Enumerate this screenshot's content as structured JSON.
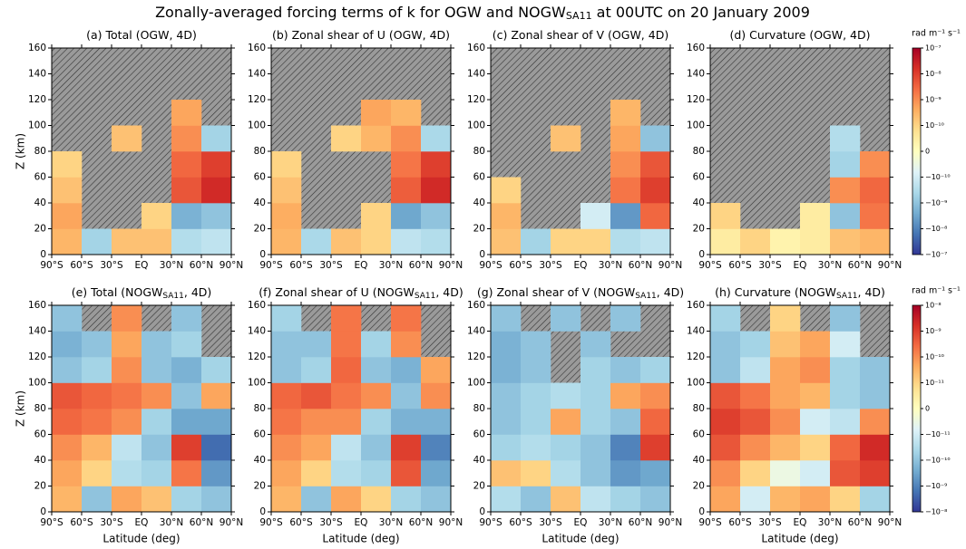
{
  "figure_title": "Zonally-averaged forcing terms of k for OGW and NOGW",
  "figure_title_sub": "SA11",
  "figure_title_end": " at 00UTC on 20 January 2009",
  "xlabel": "Latitude (deg)",
  "ylabel": "Z (km)",
  "axes": {
    "xlim": [
      -90,
      90
    ],
    "ylim": [
      0,
      160
    ],
    "xticks": [
      {
        "value": -90,
        "label": "90°S"
      },
      {
        "value": -60,
        "label": "60°S"
      },
      {
        "value": -30,
        "label": "30°S"
      },
      {
        "value": 0,
        "label": "EQ"
      },
      {
        "value": 30,
        "label": "30°N"
      },
      {
        "value": 60,
        "label": "60°N"
      },
      {
        "value": 90,
        "label": "90°N"
      }
    ],
    "yticks": [
      0,
      20,
      40,
      60,
      80,
      100,
      120,
      140,
      160
    ]
  },
  "colormap": [
    "#313695",
    "#4575b4",
    "#74add1",
    "#abd9e9",
    "#e0f3f8",
    "#ffffbf",
    "#fee090",
    "#fdae61",
    "#f46d43",
    "#d73027",
    "#a50026"
  ],
  "chart_data": [
    {
      "type": "heatmap",
      "title": "(a) Total (OGW, 4D)",
      "x": [
        -75,
        -45,
        -15,
        15,
        45,
        75
      ],
      "y": [
        10,
        30,
        50,
        70,
        90,
        110,
        130,
        150
      ],
      "values": [
        [
          3e-10,
          -5e-10,
          2e-10,
          2e-10,
          -3e-10,
          -2e-10
        ],
        [
          5e-10,
          null,
          null,
          1e-10,
          -2e-09,
          -1e-09
        ],
        [
          2e-10,
          null,
          null,
          null,
          5e-09,
          2e-08
        ],
        [
          1e-10,
          null,
          null,
          null,
          3e-09,
          1e-08
        ],
        [
          null,
          null,
          2e-10,
          null,
          1e-09,
          -5e-10
        ],
        [
          null,
          null,
          null,
          null,
          5e-10,
          null
        ],
        [
          null,
          null,
          null,
          null,
          null,
          null
        ],
        [
          null,
          null,
          null,
          null,
          null,
          null
        ]
      ]
    },
    {
      "type": "heatmap",
      "title": "(b) Zonal shear of U (OGW, 4D)",
      "x": [
        -75,
        -45,
        -15,
        15,
        45,
        75
      ],
      "y": [
        10,
        30,
        50,
        70,
        90,
        110,
        130,
        150
      ],
      "values": [
        [
          3e-10,
          -4e-10,
          2e-10,
          1e-10,
          -2e-10,
          -3e-10
        ],
        [
          4e-10,
          null,
          null,
          1e-10,
          -3e-09,
          -1e-09
        ],
        [
          2e-10,
          null,
          null,
          null,
          4e-09,
          2e-08
        ],
        [
          1e-10,
          null,
          null,
          null,
          2e-09,
          1e-08
        ],
        [
          null,
          null,
          1e-10,
          3e-10,
          1e-09,
          -4e-10
        ],
        [
          null,
          null,
          null,
          5e-10,
          3e-10,
          null
        ],
        [
          null,
          null,
          null,
          null,
          null,
          null
        ],
        [
          null,
          null,
          null,
          null,
          null,
          null
        ]
      ]
    },
    {
      "type": "heatmap",
      "title": "(c) Zonal shear of V (OGW, 4D)",
      "x": [
        -75,
        -45,
        -15,
        15,
        45,
        75
      ],
      "y": [
        10,
        30,
        50,
        70,
        90,
        110,
        130,
        150
      ],
      "values": [
        [
          2e-10,
          -5e-10,
          1e-10,
          1e-10,
          -3e-10,
          -2e-10
        ],
        [
          3e-10,
          null,
          null,
          -1e-10,
          -5e-09,
          3e-09
        ],
        [
          1e-10,
          null,
          null,
          null,
          2e-09,
          1e-08
        ],
        [
          null,
          null,
          null,
          null,
          1e-09,
          5e-09
        ],
        [
          null,
          null,
          2e-10,
          null,
          5e-10,
          -1e-09
        ],
        [
          null,
          null,
          null,
          null,
          3e-10,
          null
        ],
        [
          null,
          null,
          null,
          null,
          null,
          null
        ],
        [
          null,
          null,
          null,
          null,
          null,
          null
        ]
      ]
    },
    {
      "type": "heatmap",
      "title": "(d) Curvature (OGW, 4D)",
      "x": [
        -75,
        -45,
        -15,
        15,
        45,
        75
      ],
      "y": [
        10,
        30,
        50,
        70,
        90,
        110,
        130,
        150
      ],
      "values": [
        [
          5e-11,
          1e-10,
          3e-11,
          5e-11,
          2e-10,
          3e-10
        ],
        [
          1e-10,
          null,
          null,
          5e-11,
          -1e-09,
          2e-09
        ],
        [
          null,
          null,
          null,
          null,
          1e-09,
          3e-09
        ],
        [
          null,
          null,
          null,
          null,
          -5e-10,
          1e-09
        ],
        [
          null,
          null,
          null,
          null,
          -3e-10,
          null
        ],
        [
          null,
          null,
          null,
          null,
          null,
          null
        ],
        [
          null,
          null,
          null,
          null,
          null,
          null
        ],
        [
          null,
          null,
          null,
          null,
          null,
          null
        ]
      ],
      "colorbar": {
        "label": "rad m⁻¹ s⁻¹",
        "lim": [
          -1e-07,
          1e-07
        ],
        "ticks": [
          {
            "value": 1e-07,
            "label": "10⁻⁷"
          },
          {
            "value": 1e-08,
            "label": "10⁻⁸"
          },
          {
            "value": 1e-09,
            "label": "10⁻⁹"
          },
          {
            "value": 1e-10,
            "label": "10⁻¹⁰"
          },
          0,
          {
            "value": -1e-10,
            "label": "−10⁻¹⁰"
          },
          {
            "value": -1e-09,
            "label": "−10⁻⁹"
          },
          {
            "value": -1e-08,
            "label": "−10⁻⁸"
          },
          {
            "value": -1e-07,
            "label": "−10⁻⁷"
          }
        ]
      }
    },
    {
      "type": "heatmap",
      "title": "(e) Total (NOGW",
      "title_sub": "SA11",
      "title_end": ", 4D)",
      "x": [
        -75,
        -45,
        -15,
        15,
        45,
        75
      ],
      "y": [
        10,
        30,
        50,
        70,
        90,
        110,
        130,
        150
      ],
      "values": [
        [
          3e-11,
          -1e-10,
          5e-11,
          2e-11,
          -5e-11,
          -1e-10
        ],
        [
          5e-11,
          1e-11,
          -3e-11,
          -5e-11,
          2e-10,
          -5e-10
        ],
        [
          1e-10,
          3e-11,
          -2e-11,
          -1e-10,
          1e-09,
          -2e-09
        ],
        [
          3e-10,
          2e-10,
          1e-10,
          -5e-11,
          -3e-10,
          -3e-10
        ],
        [
          5e-10,
          3e-10,
          2e-10,
          1e-10,
          -1e-10,
          5e-11
        ],
        [
          -1e-10,
          -5e-11,
          1e-10,
          -1e-10,
          -2e-10,
          -5e-11
        ],
        [
          -2e-10,
          -1e-10,
          5e-11,
          -1e-10,
          -5e-11,
          null
        ],
        [
          -1e-10,
          null,
          1e-10,
          null,
          -1e-10,
          null
        ]
      ]
    },
    {
      "type": "heatmap",
      "title": "(f) Zonal shear of U (NOGW",
      "title_sub": "SA11",
      "title_end": ", 4D)",
      "x": [
        -75,
        -45,
        -15,
        15,
        45,
        75
      ],
      "y": [
        10,
        30,
        50,
        70,
        90,
        110,
        130,
        150
      ],
      "values": [
        [
          3e-11,
          -1e-10,
          5e-11,
          1e-11,
          -5e-11,
          -1e-10
        ],
        [
          5e-11,
          1e-11,
          -3e-11,
          -5e-11,
          5e-10,
          -3e-10
        ],
        [
          1e-10,
          5e-11,
          -2e-11,
          -1e-10,
          1e-09,
          -1e-09
        ],
        [
          2e-10,
          1e-10,
          1e-10,
          -5e-11,
          -2e-10,
          -2e-10
        ],
        [
          3e-10,
          5e-10,
          2e-10,
          1e-10,
          -1e-10,
          1e-10
        ],
        [
          -1e-10,
          -5e-11,
          3e-10,
          -1e-10,
          -2e-10,
          5e-11
        ],
        [
          -1e-10,
          -1e-10,
          2e-10,
          -5e-11,
          1e-10,
          null
        ],
        [
          -5e-11,
          null,
          2e-10,
          null,
          2e-10,
          null
        ]
      ]
    },
    {
      "type": "heatmap",
      "title": "(g) Zonal shear of V (NOGW",
      "title_sub": "SA11",
      "title_end": ", 4D)",
      "x": [
        -75,
        -45,
        -15,
        15,
        45,
        75
      ],
      "y": [
        10,
        30,
        50,
        70,
        90,
        110,
        130,
        150
      ],
      "values": [
        [
          -3e-11,
          -1e-10,
          2e-11,
          -2e-11,
          -5e-11,
          -1e-10
        ],
        [
          2e-11,
          1e-11,
          -3e-11,
          -1e-10,
          -5e-10,
          -3e-10
        ],
        [
          -5e-11,
          -3e-11,
          -5e-11,
          -1e-10,
          -1e-09,
          1e-09
        ],
        [
          -1e-10,
          -5e-11,
          5e-11,
          -5e-11,
          -1e-10,
          3e-10
        ],
        [
          -1e-10,
          -5e-11,
          -3e-11,
          -5e-11,
          5e-11,
          1e-10
        ],
        [
          -2e-10,
          -1e-10,
          null,
          -5e-11,
          -1e-10,
          -5e-11
        ],
        [
          -2e-10,
          -1e-10,
          null,
          -1e-10,
          null,
          null
        ],
        [
          -1e-10,
          null,
          -1e-10,
          null,
          -1e-10,
          null
        ]
      ]
    },
    {
      "type": "heatmap",
      "title": "(h) Curvature (NOGW",
      "title_sub": "SA11",
      "title_end": ", 4D)",
      "x": [
        -75,
        -45,
        -15,
        15,
        45,
        75
      ],
      "y": [
        10,
        30,
        50,
        70,
        90,
        110,
        130,
        150
      ],
      "values": [
        [
          5e-11,
          -1e-11,
          3e-11,
          5e-11,
          1e-11,
          -5e-11
        ],
        [
          1e-10,
          1e-11,
          -5e-12,
          -1e-11,
          5e-10,
          1e-09
        ],
        [
          5e-10,
          1e-10,
          3e-11,
          1e-11,
          3e-10,
          2e-09
        ],
        [
          1e-09,
          5e-10,
          1e-10,
          -1e-11,
          -2e-11,
          1e-10
        ],
        [
          5e-10,
          2e-10,
          5e-11,
          3e-11,
          -5e-11,
          -1e-10
        ],
        [
          -1e-10,
          -2e-11,
          5e-11,
          1e-10,
          -5e-11,
          -1e-10
        ],
        [
          -1e-10,
          -5e-11,
          2e-11,
          5e-11,
          -1e-11,
          null
        ],
        [
          -5e-11,
          null,
          1e-11,
          null,
          -1e-10,
          null
        ]
      ],
      "colorbar": {
        "label": "rad m⁻¹ s⁻¹",
        "lim": [
          -1e-08,
          1e-08
        ],
        "ticks": [
          {
            "value": 1e-08,
            "label": "10⁻⁸"
          },
          {
            "value": 1e-09,
            "label": "10⁻⁹"
          },
          {
            "value": 1e-10,
            "label": "10⁻¹⁰"
          },
          {
            "value": 1e-11,
            "label": "10⁻¹¹"
          },
          0,
          {
            "value": -1e-11,
            "label": "−10⁻¹¹"
          },
          {
            "value": -1e-10,
            "label": "−10⁻¹⁰"
          },
          {
            "value": -1e-09,
            "label": "−10⁻⁹"
          },
          {
            "value": -1e-08,
            "label": "−10⁻⁸"
          }
        ]
      }
    }
  ]
}
